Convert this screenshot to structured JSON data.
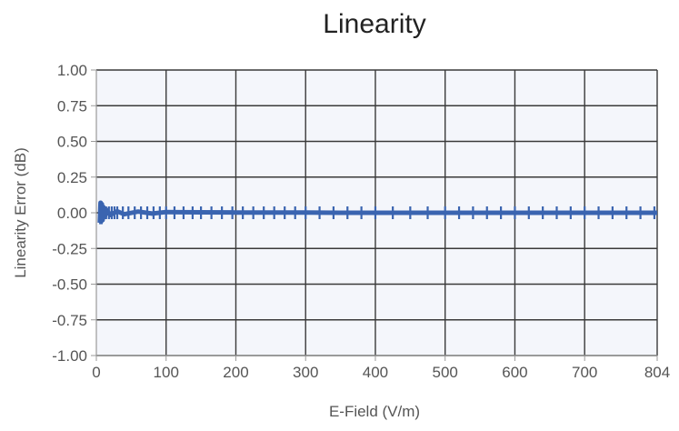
{
  "chart_data": {
    "type": "line",
    "title": "Linearity",
    "xlabel": "E-Field (V/m)",
    "ylabel": "Linearity Error (dB)",
    "xlim": [
      0,
      804
    ],
    "ylim": [
      -1.0,
      1.0
    ],
    "x_ticks": [
      "0",
      "100",
      "200",
      "300",
      "400",
      "500",
      "600",
      "700",
      "804"
    ],
    "y_ticks": [
      "1.00",
      "0.75",
      "0.50",
      "0.25",
      "0.00",
      "-0.25",
      "-0.50",
      "-0.75",
      "-1.00"
    ],
    "grid": true,
    "colors": {
      "series": "#3a64b0",
      "grid": "#3a3a3a",
      "plot_bg": "#f4f6fb",
      "axis": "#9a9a9a"
    },
    "series": [
      {
        "x": [
          5,
          6,
          7,
          8,
          9,
          10,
          12,
          15,
          20,
          30,
          40,
          60,
          80,
          100,
          120,
          150,
          200,
          250,
          300,
          350,
          400,
          450,
          500,
          550,
          600,
          650,
          700,
          750,
          804
        ],
        "y": [
          -0.07,
          0.07,
          -0.06,
          0.06,
          -0.05,
          0.04,
          -0.03,
          0.02,
          -0.015,
          0.01,
          -0.01,
          0.008,
          -0.006,
          0.005,
          0.004,
          0.003,
          0.002,
          0.001,
          0.001,
          0.0,
          0.0,
          0.0,
          0.0,
          0.0,
          0.0,
          0.0,
          0.0,
          0.0,
          0.0
        ]
      }
    ],
    "markers_x": [
      10,
      14,
      18,
      22,
      26,
      30,
      38,
      46,
      55,
      64,
      73,
      82,
      91,
      100,
      112,
      125,
      138,
      150,
      165,
      180,
      195,
      210,
      225,
      240,
      255,
      270,
      285,
      300,
      320,
      340,
      360,
      380,
      400,
      425,
      450,
      475,
      500,
      520,
      540,
      560,
      580,
      600,
      620,
      640,
      660,
      680,
      700,
      720,
      740,
      760,
      780,
      800
    ]
  }
}
